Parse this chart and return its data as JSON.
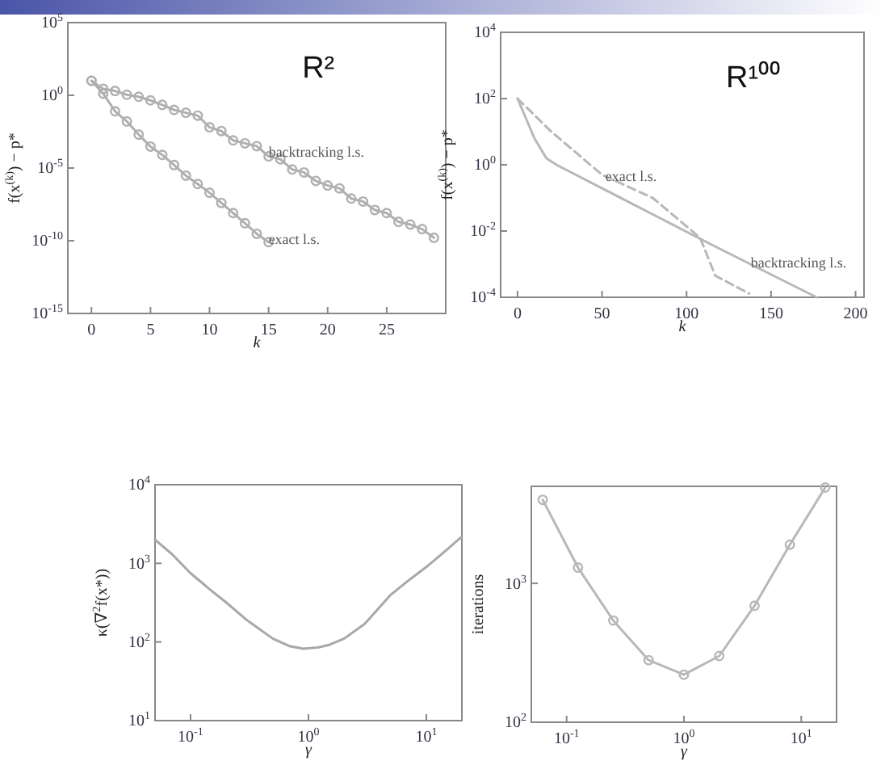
{
  "chart_data": [
    {
      "type": "line",
      "title": "R²",
      "xlabel": "k",
      "ylabel": "f(x$^{(k)}$) − p*",
      "log": true,
      "marker": "circle",
      "xlim": [
        -2,
        30
      ],
      "ylim": [
        1e-15,
        100000.0
      ],
      "xticks": [
        0,
        5,
        10,
        15,
        20,
        25
      ],
      "yticks": [
        {
          "value": 100000.0,
          "label": "10$^{5}$"
        },
        {
          "value": 1,
          "label": "10$^{0}$"
        },
        {
          "value": 1e-05,
          "label": "10$^{-5}$"
        },
        {
          "value": 1e-10,
          "label": "10$^{-10}$"
        },
        {
          "value": 1e-15,
          "label": "10$^{-15}$"
        }
      ],
      "series": [
        {
          "color": "#b0b0b0",
          "x": [
            0,
            1,
            2,
            3,
            4,
            5,
            6,
            7,
            8,
            9,
            10,
            11,
            12,
            13,
            14,
            15,
            16,
            17,
            18,
            19,
            20,
            21,
            22,
            23,
            24,
            25,
            26,
            27,
            28,
            29
          ],
          "values": [
            10,
            2.8,
            2,
            1.1,
            0.8,
            0.45,
            0.22,
            0.1,
            0.063,
            0.04,
            0.0063,
            0.0035,
            0.0008,
            0.0005,
            0.00032,
            6.3e-05,
            4e-05,
            8e-06,
            5e-06,
            1.3e-06,
            6.3e-07,
            4e-07,
            8e-08,
            5e-08,
            1.3e-08,
            8e-09,
            2e-09,
            1.3e-09,
            6.3e-10,
            1.6e-10
          ]
        },
        {
          "color": "#b0b0b0",
          "x": [
            0,
            1,
            2,
            3,
            4,
            5,
            6,
            7,
            8,
            9,
            10,
            11,
            12,
            13,
            14,
            15
          ],
          "values": [
            10,
            1.3,
            0.08,
            0.016,
            0.002,
            0.0003,
            8e-05,
            1.6e-05,
            3e-06,
            8e-07,
            2e-07,
            4e-08,
            8e-09,
            1.6e-09,
            3e-10,
            8e-11
          ]
        }
      ],
      "annotations": [
        {
          "text": "backtracking l.s.",
          "x": 15,
          "y": 0.0001
        },
        {
          "text": "exact l.s.",
          "x": 15,
          "y": 1e-10
        }
      ]
    },
    {
      "type": "line",
      "title": "R¹⁰⁰",
      "xlabel": "k",
      "ylabel": "f(x$^{(k)}$) − p*",
      "log": true,
      "xlim": [
        -10,
        205
      ],
      "ylim": [
        0.0001,
        10000.0
      ],
      "xticks": [
        0,
        50,
        100,
        150,
        200
      ],
      "yticks": [
        {
          "value": 10000.0,
          "label": "10$^{4}$"
        },
        {
          "value": 100,
          "label": "10$^{2}$"
        },
        {
          "value": 1,
          "label": "10$^{0}$"
        },
        {
          "value": 0.01,
          "label": "10$^{-2}$"
        },
        {
          "value": 0.0001,
          "label": "10$^{-4}$"
        }
      ],
      "series": [
        {
          "color": "#b8b8b8",
          "line_style": "solid",
          "x": [
            0,
            10,
            17,
            23,
            118,
            177
          ],
          "values": [
            100,
            6.3,
            1.6,
            1,
            0.0032,
            0.0001
          ]
        },
        {
          "color": "#b8b8b8",
          "line_style": "dashed",
          "x": [
            0,
            20,
            50,
            80,
            108,
            117,
            137
          ],
          "values": [
            100,
            10,
            0.5,
            0.1,
            0.0063,
            0.00045,
            0.00013
          ]
        }
      ],
      "annotations": [
        {
          "text": "exact l.s.",
          "x": 52,
          "y": 0.4
        },
        {
          "text": "backtracking l.s.",
          "x": 138,
          "y": 0.001
        }
      ]
    },
    {
      "type": "line",
      "xlabel": "γ",
      "ylabel": "κ(∇$^{2}$f(x*))",
      "log": "xy",
      "xlim": [
        0.05,
        20
      ],
      "ylim": [
        10,
        10000.0
      ],
      "xticks": [
        {
          "value": 0.1,
          "label": "10$^{-1}$"
        },
        {
          "value": 1,
          "label": "10$^{0}$"
        },
        {
          "value": 10,
          "label": "10$^{1}$"
        }
      ],
      "yticks": [
        {
          "value": 10,
          "label": "10$^{1}$"
        },
        {
          "value": 100,
          "label": "10$^{2}$"
        },
        {
          "value": 1000,
          "label": "10$^{3}$"
        },
        {
          "value": 10000.0,
          "label": "10$^{4}$"
        }
      ],
      "series": [
        {
          "color": "#a8a8a8",
          "x": [
            0.05,
            0.07,
            0.1,
            0.15,
            0.2,
            0.3,
            0.5,
            0.7,
            0.9,
            1.2,
            1.5,
            2,
            3,
            5,
            7,
            10,
            15,
            20
          ],
          "values": [
            2000,
            1300,
            750,
            450,
            320,
            190,
            110,
            88,
            82,
            85,
            92,
            110,
            170,
            400,
            600,
            900,
            1500,
            2200
          ]
        }
      ]
    },
    {
      "type": "line",
      "xlabel": "γ",
      "ylabel": "iterations",
      "log": "xy",
      "marker": "circle",
      "xlim": [
        0.05,
        20
      ],
      "ylim": [
        100,
        5000
      ],
      "xticks": [
        {
          "value": 0.1,
          "label": "10$^{-1}$"
        },
        {
          "value": 1,
          "label": "10$^{0}$"
        },
        {
          "value": 10,
          "label": "10$^{1}$"
        }
      ],
      "yticks": [
        {
          "value": 100,
          "label": "10$^{2}$"
        },
        {
          "value": 1000,
          "label": "10$^{3}$"
        }
      ],
      "series": [
        {
          "color": "#b8b8b8",
          "x": [
            0.0625,
            0.125,
            0.25,
            0.5,
            1,
            2,
            4,
            8,
            16
          ],
          "values": [
            4000,
            1300,
            540,
            280,
            220,
            300,
            690,
            1900,
            4900
          ]
        }
      ]
    }
  ]
}
